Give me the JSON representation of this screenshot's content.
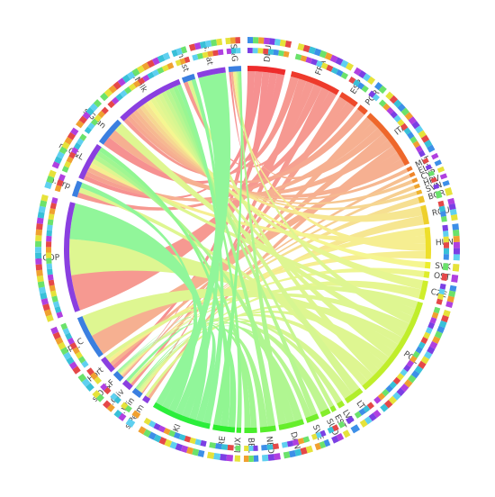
{
  "nodes": [
    {
      "label": "DEU"
    },
    {
      "label": "FRA"
    },
    {
      "label": "ESP"
    },
    {
      "label": "POR"
    },
    {
      "label": "ITA"
    },
    {
      "label": "MLT"
    },
    {
      "label": "ELL"
    },
    {
      "label": "CYP"
    },
    {
      "label": "HRV"
    },
    {
      "label": "SVN"
    },
    {
      "label": "BGR"
    },
    {
      "label": "ROU"
    },
    {
      "label": "HUN"
    },
    {
      "label": "SVK"
    },
    {
      "label": "OST"
    },
    {
      "label": "CZE"
    },
    {
      "label": "POL"
    },
    {
      "label": "LTU"
    },
    {
      "label": "LVA"
    },
    {
      "label": "EST"
    },
    {
      "label": "SUO"
    },
    {
      "label": "SVE"
    },
    {
      "label": "DAN"
    },
    {
      "label": "NED"
    },
    {
      "label": "BEL"
    },
    {
      "label": "LUX"
    },
    {
      "label": "IRE"
    },
    {
      "label": "UKI"
    },
    {
      "label": "s.Perm"
    },
    {
      "label": "s.Win"
    },
    {
      "label": "s.Oliv"
    },
    {
      "label": "s.Or&F"
    },
    {
      "label": "s.Hort"
    },
    {
      "label": "spl_C"
    },
    {
      "label": "s.COP"
    },
    {
      "label": "m.Crp"
    },
    {
      "label": "m.C&L"
    },
    {
      "label": "s.Gran"
    },
    {
      "label": "s.Milk"
    },
    {
      "label": "m.Lst"
    },
    {
      "label": "s.Cat"
    },
    {
      "label": "s.S&G"
    }
  ]
}
